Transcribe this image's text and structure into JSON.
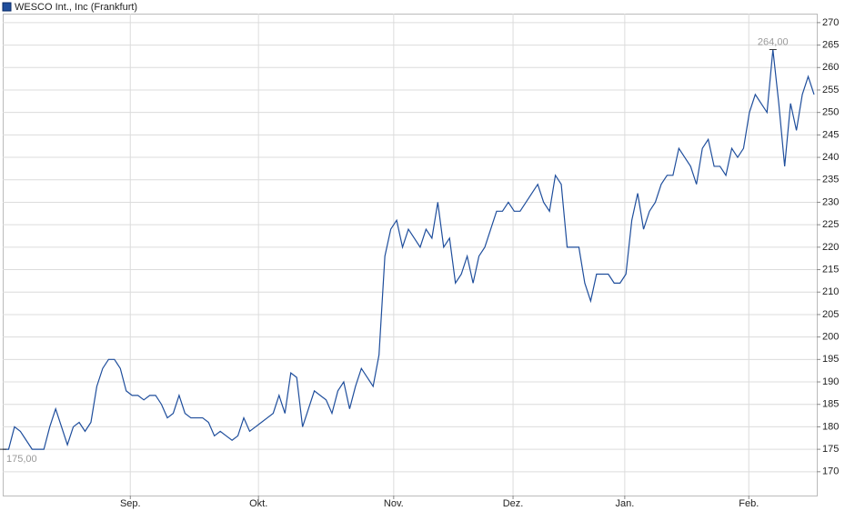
{
  "chart_data": {
    "type": "line",
    "title": "WESCO Int., Inc (Frankfurt)",
    "values": [
      175,
      175,
      180,
      179,
      177,
      175,
      175,
      175,
      180,
      184,
      180,
      176,
      180,
      181,
      179,
      181,
      189,
      193,
      195,
      195,
      193,
      188,
      187,
      187,
      186,
      187,
      187,
      185,
      182,
      183,
      187,
      183,
      182,
      182,
      182,
      181,
      178,
      179,
      178,
      177,
      178,
      182,
      179,
      180,
      181,
      182,
      183,
      187,
      183,
      192,
      191,
      180,
      184,
      188,
      187,
      186,
      183,
      188,
      190,
      184,
      189,
      193,
      191,
      189,
      196,
      218,
      224,
      226,
      220,
      224,
      222,
      220,
      224,
      222,
      230,
      220,
      222,
      212,
      214,
      218,
      212,
      218,
      220,
      224,
      228,
      228,
      230,
      228,
      228,
      230,
      232,
      234,
      230,
      228,
      236,
      234,
      220,
      220,
      220,
      212,
      208,
      214,
      214,
      214,
      212,
      212,
      214,
      226,
      232,
      224,
      228,
      230,
      234,
      236,
      236,
      242,
      240,
      238,
      234,
      242,
      244,
      238,
      238,
      236,
      242,
      240,
      242,
      250,
      254,
      252,
      250,
      264,
      252,
      238,
      252,
      246,
      254,
      258,
      254
    ],
    "color": "#1f4e9c",
    "xlim": [
      0,
      138
    ],
    "xticks": [
      {
        "value": 21.7,
        "label": "Sep."
      },
      {
        "value": 43.5,
        "label": "Okt."
      },
      {
        "value": 66.5,
        "label": "Nov."
      },
      {
        "value": 86.8,
        "label": "Dez."
      },
      {
        "value": 105.8,
        "label": "Jan."
      },
      {
        "value": 126.9,
        "label": "Feb."
      }
    ],
    "ylim": [
      164.7,
      272
    ],
    "yticks": [
      170,
      175,
      180,
      185,
      190,
      195,
      200,
      205,
      210,
      215,
      220,
      225,
      230,
      235,
      240,
      245,
      250,
      255,
      260,
      265,
      270
    ],
    "grid": true,
    "annotations": [
      {
        "x": 131,
        "value": 264,
        "label": "264,00",
        "position": "above"
      },
      {
        "x": 0,
        "value": 175,
        "label": "175,00",
        "position": "below"
      }
    ]
  }
}
